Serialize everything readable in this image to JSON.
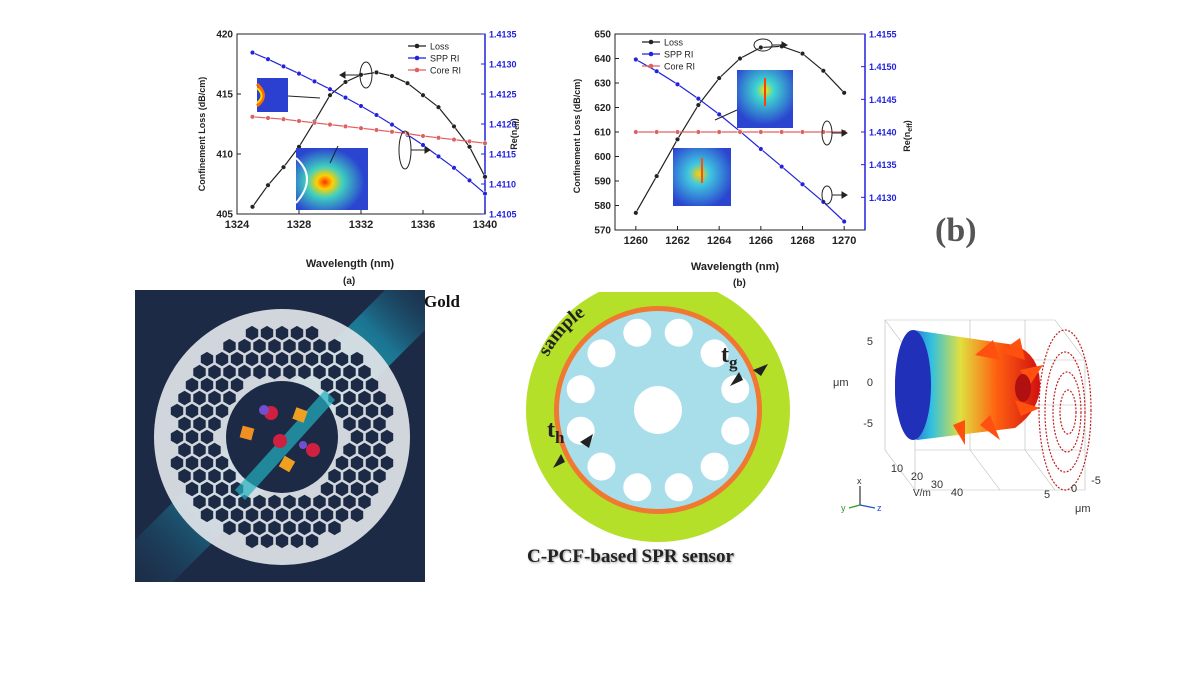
{
  "chart_data": [
    {
      "type": "line",
      "panel": "(a)",
      "xlabel": "Wavelength (nm)",
      "ylabel_left": "Confinement Loss (dB/cm)",
      "ylabel_right": "Re(n_eff)",
      "ylabel_right_display": "Re(n",
      "ylabel_right_sub": "eff",
      "xlim": [
        1324,
        1340
      ],
      "ylim_left": [
        405,
        420
      ],
      "ylim_right": [
        1.4105,
        1.4135
      ],
      "x_ticks": [
        "1324",
        "1328",
        "1332",
        "1336",
        "1340"
      ],
      "y_ticks_left": [
        "405",
        "410",
        "415",
        "420"
      ],
      "y_ticks_right": [
        "1.4105",
        "1.4110",
        "1.4115",
        "1.4120",
        "1.4125",
        "1.4130",
        "1.4135"
      ],
      "x": [
        1325,
        1326,
        1327,
        1328,
        1329,
        1330,
        1331,
        1332,
        1333,
        1334,
        1335,
        1336,
        1337,
        1338,
        1339,
        1340
      ],
      "series": [
        {
          "name": "Loss",
          "axis": "left",
          "color": "#222222",
          "values": [
            405.6,
            407.4,
            408.9,
            410.6,
            412.7,
            414.9,
            416.0,
            416.6,
            416.8,
            416.5,
            415.9,
            414.9,
            413.9,
            412.3,
            410.6,
            408.1
          ]
        },
        {
          "name": "SPP RI",
          "axis": "right",
          "color": "#2222dd",
          "values": [
            1.41319,
            1.41308,
            1.41296,
            1.41284,
            1.41271,
            1.41258,
            1.41244,
            1.4123,
            1.41215,
            1.41199,
            1.41182,
            1.41165,
            1.41146,
            1.41127,
            1.41106,
            1.41084
          ]
        },
        {
          "name": "Core RI",
          "axis": "right",
          "color": "#e06060",
          "values": [
            1.41212,
            1.4121,
            1.41208,
            1.41205,
            1.41202,
            1.41199,
            1.41196,
            1.41193,
            1.4119,
            1.41187,
            1.41184,
            1.4118,
            1.41177,
            1.41174,
            1.41171,
            1.41168
          ]
        }
      ]
    },
    {
      "type": "line",
      "panel": "(b)",
      "xlabel": "Wavelength (nm)",
      "ylabel_left": "Confinement Loss (dB/cm)",
      "ylabel_right": "Re(n_eff)",
      "ylabel_right_display": "Re(n",
      "ylabel_right_sub": "eff",
      "xlim": [
        1259,
        1271
      ],
      "ylim_left": [
        570,
        650
      ],
      "ylim_right": [
        1.4125,
        1.4155
      ],
      "x_ticks": [
        "1260",
        "1262",
        "1264",
        "1266",
        "1268",
        "1270"
      ],
      "y_ticks_left": [
        "570",
        "580",
        "590",
        "600",
        "610",
        "620",
        "630",
        "640",
        "650"
      ],
      "y_ticks_right": [
        "1.4130",
        "1.4135",
        "1.4140",
        "1.4145",
        "1.4150",
        "1.4155"
      ],
      "x": [
        1260,
        1261,
        1262,
        1263,
        1264,
        1265,
        1266,
        1267,
        1268,
        1269,
        1270
      ],
      "series": [
        {
          "name": "Loss",
          "axis": "left",
          "color": "#222222",
          "values": [
            577,
            592,
            607,
            621,
            632,
            640,
            644.5,
            645,
            642,
            635,
            626
          ]
        },
        {
          "name": "SPP RI",
          "axis": "right",
          "color": "#2222dd",
          "values": [
            1.41511,
            1.41493,
            1.41473,
            1.41451,
            1.41427,
            1.41401,
            1.41374,
            1.41347,
            1.4132,
            1.41293,
            1.41263
          ]
        },
        {
          "name": "Core RI",
          "axis": "right",
          "color": "#e06060",
          "values": [
            1.414,
            1.414,
            1.414,
            1.414,
            1.414,
            1.414,
            1.414,
            1.414,
            1.414,
            1.414,
            1.414
          ]
        }
      ]
    }
  ],
  "labels": {
    "big_b": "(b)",
    "caption_a": "(a)",
    "caption_b": "(b)",
    "gold": "Gold",
    "sample": "sample",
    "tg_main": "t",
    "tg_sub": "g",
    "th_main": "t",
    "th_sub": "h",
    "sensor_title": "C-PCF-based SPR sensor"
  },
  "plot3d": {
    "y_ticks": [
      "5",
      "0",
      "-5"
    ],
    "y_unit": "μm",
    "v_ticks": [
      "10",
      "20",
      "30",
      "40"
    ],
    "v_unit": "V/m",
    "z_ticks": [
      "5",
      "0",
      "-5"
    ],
    "z_unit": "μm",
    "triad": {
      "x": "x",
      "y": "y",
      "z": "z"
    }
  }
}
